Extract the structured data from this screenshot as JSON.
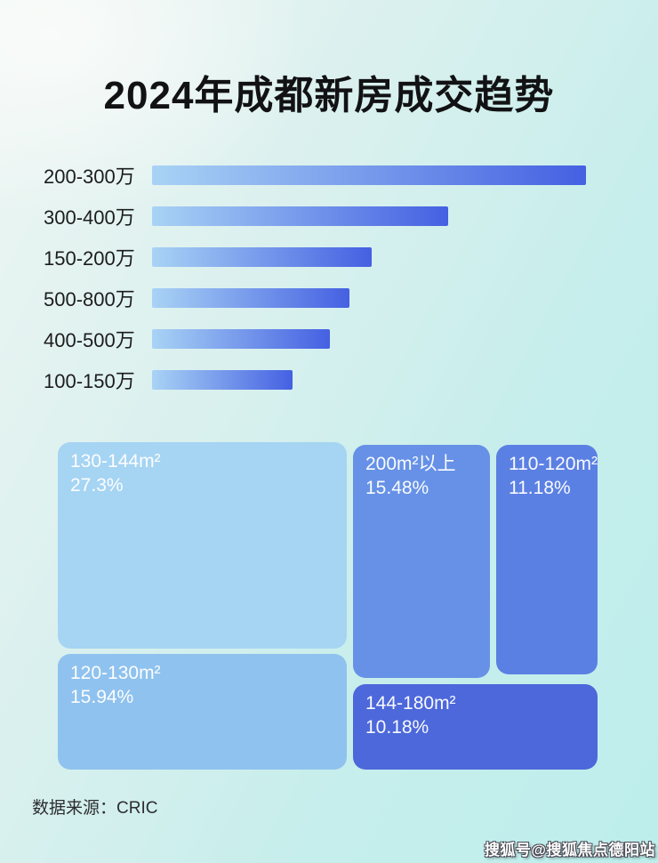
{
  "page_title": "2024年成都新房成交趋势",
  "footer": {
    "source_label": "数据来源：CRIC"
  },
  "watermark": {
    "text": "搜狐号@搜狐焦点德阳站"
  },
  "colors": {
    "background_start": "#eef6f3",
    "background_end": "#bdeeec",
    "title_text": "#121214",
    "bar_gradient_start": "#a9d3f5",
    "bar_gradient_end": "#4560e2",
    "tile_text": "#ffffff"
  },
  "chart_data": [
    {
      "type": "bar",
      "orientation": "horizontal",
      "title": "2024年成都新房成交趋势",
      "categories": [
        "200-300万",
        "300-400万",
        "150-200万",
        "500-800万",
        "400-500万",
        "100-150万"
      ],
      "values_relative_pct": [
        100,
        68.2,
        50.6,
        45.5,
        41.0,
        32.4
      ],
      "value_axis": "none shown — values are relative bar lengths estimated from pixels",
      "bar_gradient": [
        "#a9d3f5",
        "#4560e2"
      ],
      "grid": false,
      "legend": false
    },
    {
      "type": "treemap",
      "tiles": [
        {
          "label": "130-144m²",
          "pct_text": "27.3%",
          "value": 27.3,
          "color": "#a6d4f3"
        },
        {
          "label": "120-130m²",
          "pct_text": "15.94%",
          "value": 15.94,
          "color": "#8fc2ee"
        },
        {
          "label": "200m²以上",
          "pct_text": "15.48%",
          "value": 15.48,
          "color": "#6691e6"
        },
        {
          "label": "110-120m²",
          "pct_text": "11.18%",
          "value": 11.18,
          "color": "#5b80e3"
        },
        {
          "label": "144-180m²",
          "pct_text": "10.18%",
          "value": 10.18,
          "color": "#4c68da"
        }
      ],
      "legend": false
    }
  ]
}
